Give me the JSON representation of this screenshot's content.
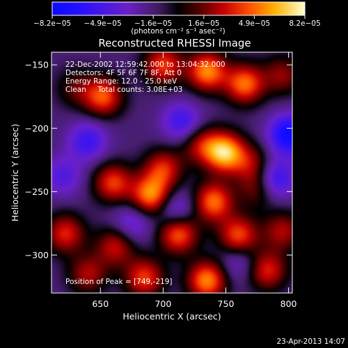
{
  "chart_data": {
    "type": "heatmap",
    "title": "Reconstructed RHESSI Image",
    "xlabel": "Heliocentric X (arcsec)",
    "ylabel": "Heliocentric Y (arcsec)",
    "xlim": [
      611,
      803
    ],
    "ylim": [
      -330,
      -140
    ],
    "x_ticks": [
      650,
      700,
      750,
      800
    ],
    "y_ticks": [
      -300,
      -250,
      -200,
      -150
    ],
    "colorbar": {
      "label": "(photons cm⁻² s⁻¹ asec⁻²)",
      "range": [
        -8.2e-05,
        8.2e-05
      ],
      "ticks": [
        "−8.2e−05",
        "−4.9e−05",
        "−1.6e−05",
        "1.6e−05",
        "4.9e−05",
        "8.2e−05"
      ]
    },
    "annotations": {
      "time": "22-Dec-2002 12:59:42.000 to 13:04:32.000",
      "detectors": "Detectors: 4F 5F 6F 7F 8F, Att 0",
      "energy": "Energy Range: 12.0 - 25.0 keV",
      "clean": "Clean     Total counts: 3.08E+03",
      "peak": "Position of Peak = [749,-219]"
    },
    "peak": [
      749,
      -219
    ],
    "sources": [
      {
        "x": 652,
        "y": -175,
        "value": 6e-05
      },
      {
        "x": 700,
        "y": -150,
        "value": 5.5e-05
      },
      {
        "x": 735,
        "y": -155,
        "value": 7e-05
      },
      {
        "x": 765,
        "y": -165,
        "value": 6.5e-05
      },
      {
        "x": 795,
        "y": -158,
        "value": 3.5e-05
      },
      {
        "x": 630,
        "y": -168,
        "value": 2.5e-05
      },
      {
        "x": 749,
        "y": -219,
        "value": 8.2e-05
      },
      {
        "x": 700,
        "y": -232,
        "value": 5e-05
      },
      {
        "x": 730,
        "y": -213,
        "value": 4e-05
      },
      {
        "x": 770,
        "y": -228,
        "value": 3.5e-05
      },
      {
        "x": 660,
        "y": -243,
        "value": 5.5e-05
      },
      {
        "x": 690,
        "y": -253,
        "value": 7e-05
      },
      {
        "x": 740,
        "y": -258,
        "value": 6.5e-05
      },
      {
        "x": 775,
        "y": -248,
        "value": 3e-05
      },
      {
        "x": 622,
        "y": -283,
        "value": 5e-05
      },
      {
        "x": 662,
        "y": -293,
        "value": 4.5e-05
      },
      {
        "x": 712,
        "y": -283,
        "value": 6.5e-05
      },
      {
        "x": 760,
        "y": -285,
        "value": 6e-05
      },
      {
        "x": 795,
        "y": -281,
        "value": 4e-05
      },
      {
        "x": 640,
        "y": -315,
        "value": 4e-05
      },
      {
        "x": 685,
        "y": -318,
        "value": 5.5e-05
      },
      {
        "x": 735,
        "y": -320,
        "value": 7e-05
      },
      {
        "x": 783,
        "y": -312,
        "value": 5e-05
      },
      {
        "x": 620,
        "y": -238,
        "value": -3e-05
      },
      {
        "x": 640,
        "y": -210,
        "value": -4e-05
      },
      {
        "x": 715,
        "y": -195,
        "value": -4e-05
      },
      {
        "x": 710,
        "y": -265,
        "value": -3.5e-05
      },
      {
        "x": 800,
        "y": -205,
        "value": -6.5e-05
      },
      {
        "x": 790,
        "y": -240,
        "value": -4.5e-05
      },
      {
        "x": 675,
        "y": -275,
        "value": -3e-05
      },
      {
        "x": 760,
        "y": -305,
        "value": -2.5e-05
      }
    ]
  },
  "footer": {
    "timestamp": "23-Apr-2013 14:07"
  }
}
